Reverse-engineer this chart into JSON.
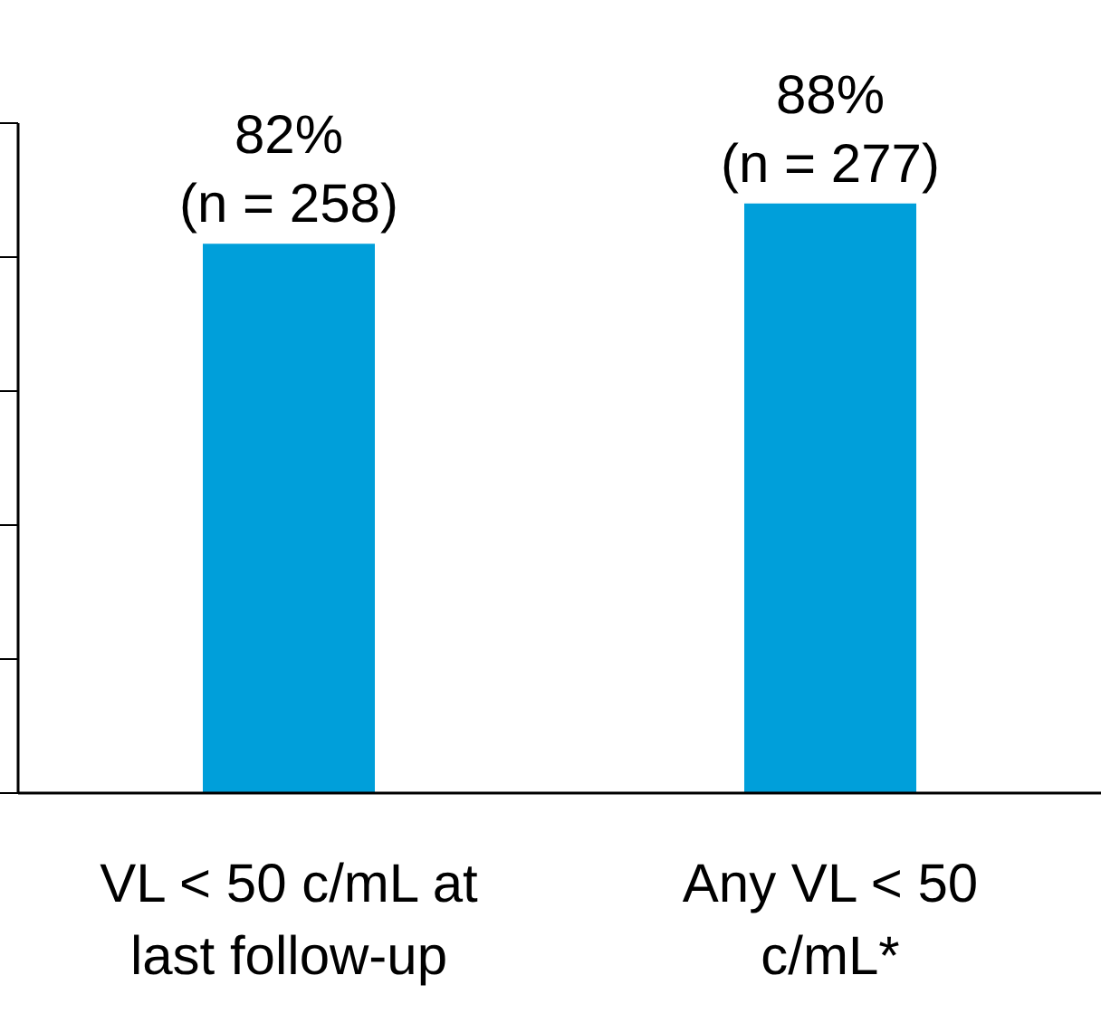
{
  "chart_data": {
    "type": "bar",
    "categories": [
      "VL < 50 c/mL at last follow-up",
      "Any VL < 50 c/mL*"
    ],
    "values": [
      82,
      88
    ],
    "color": "#009fda",
    "value_labels": [
      "82% (n = 258)",
      "88% (n = 277)"
    ],
    "ylim": [
      0,
      100
    ],
    "yticks": [
      {
        "value": 0,
        "label": null
      },
      {
        "value": 20,
        "label": null
      },
      {
        "value": 40,
        "label": null
      },
      {
        "value": 60,
        "label": null
      },
      {
        "value": 80,
        "label": null
      },
      {
        "value": 100,
        "label": null
      }
    ],
    "tick_labels": "x",
    "grid": false,
    "legend": false
  }
}
